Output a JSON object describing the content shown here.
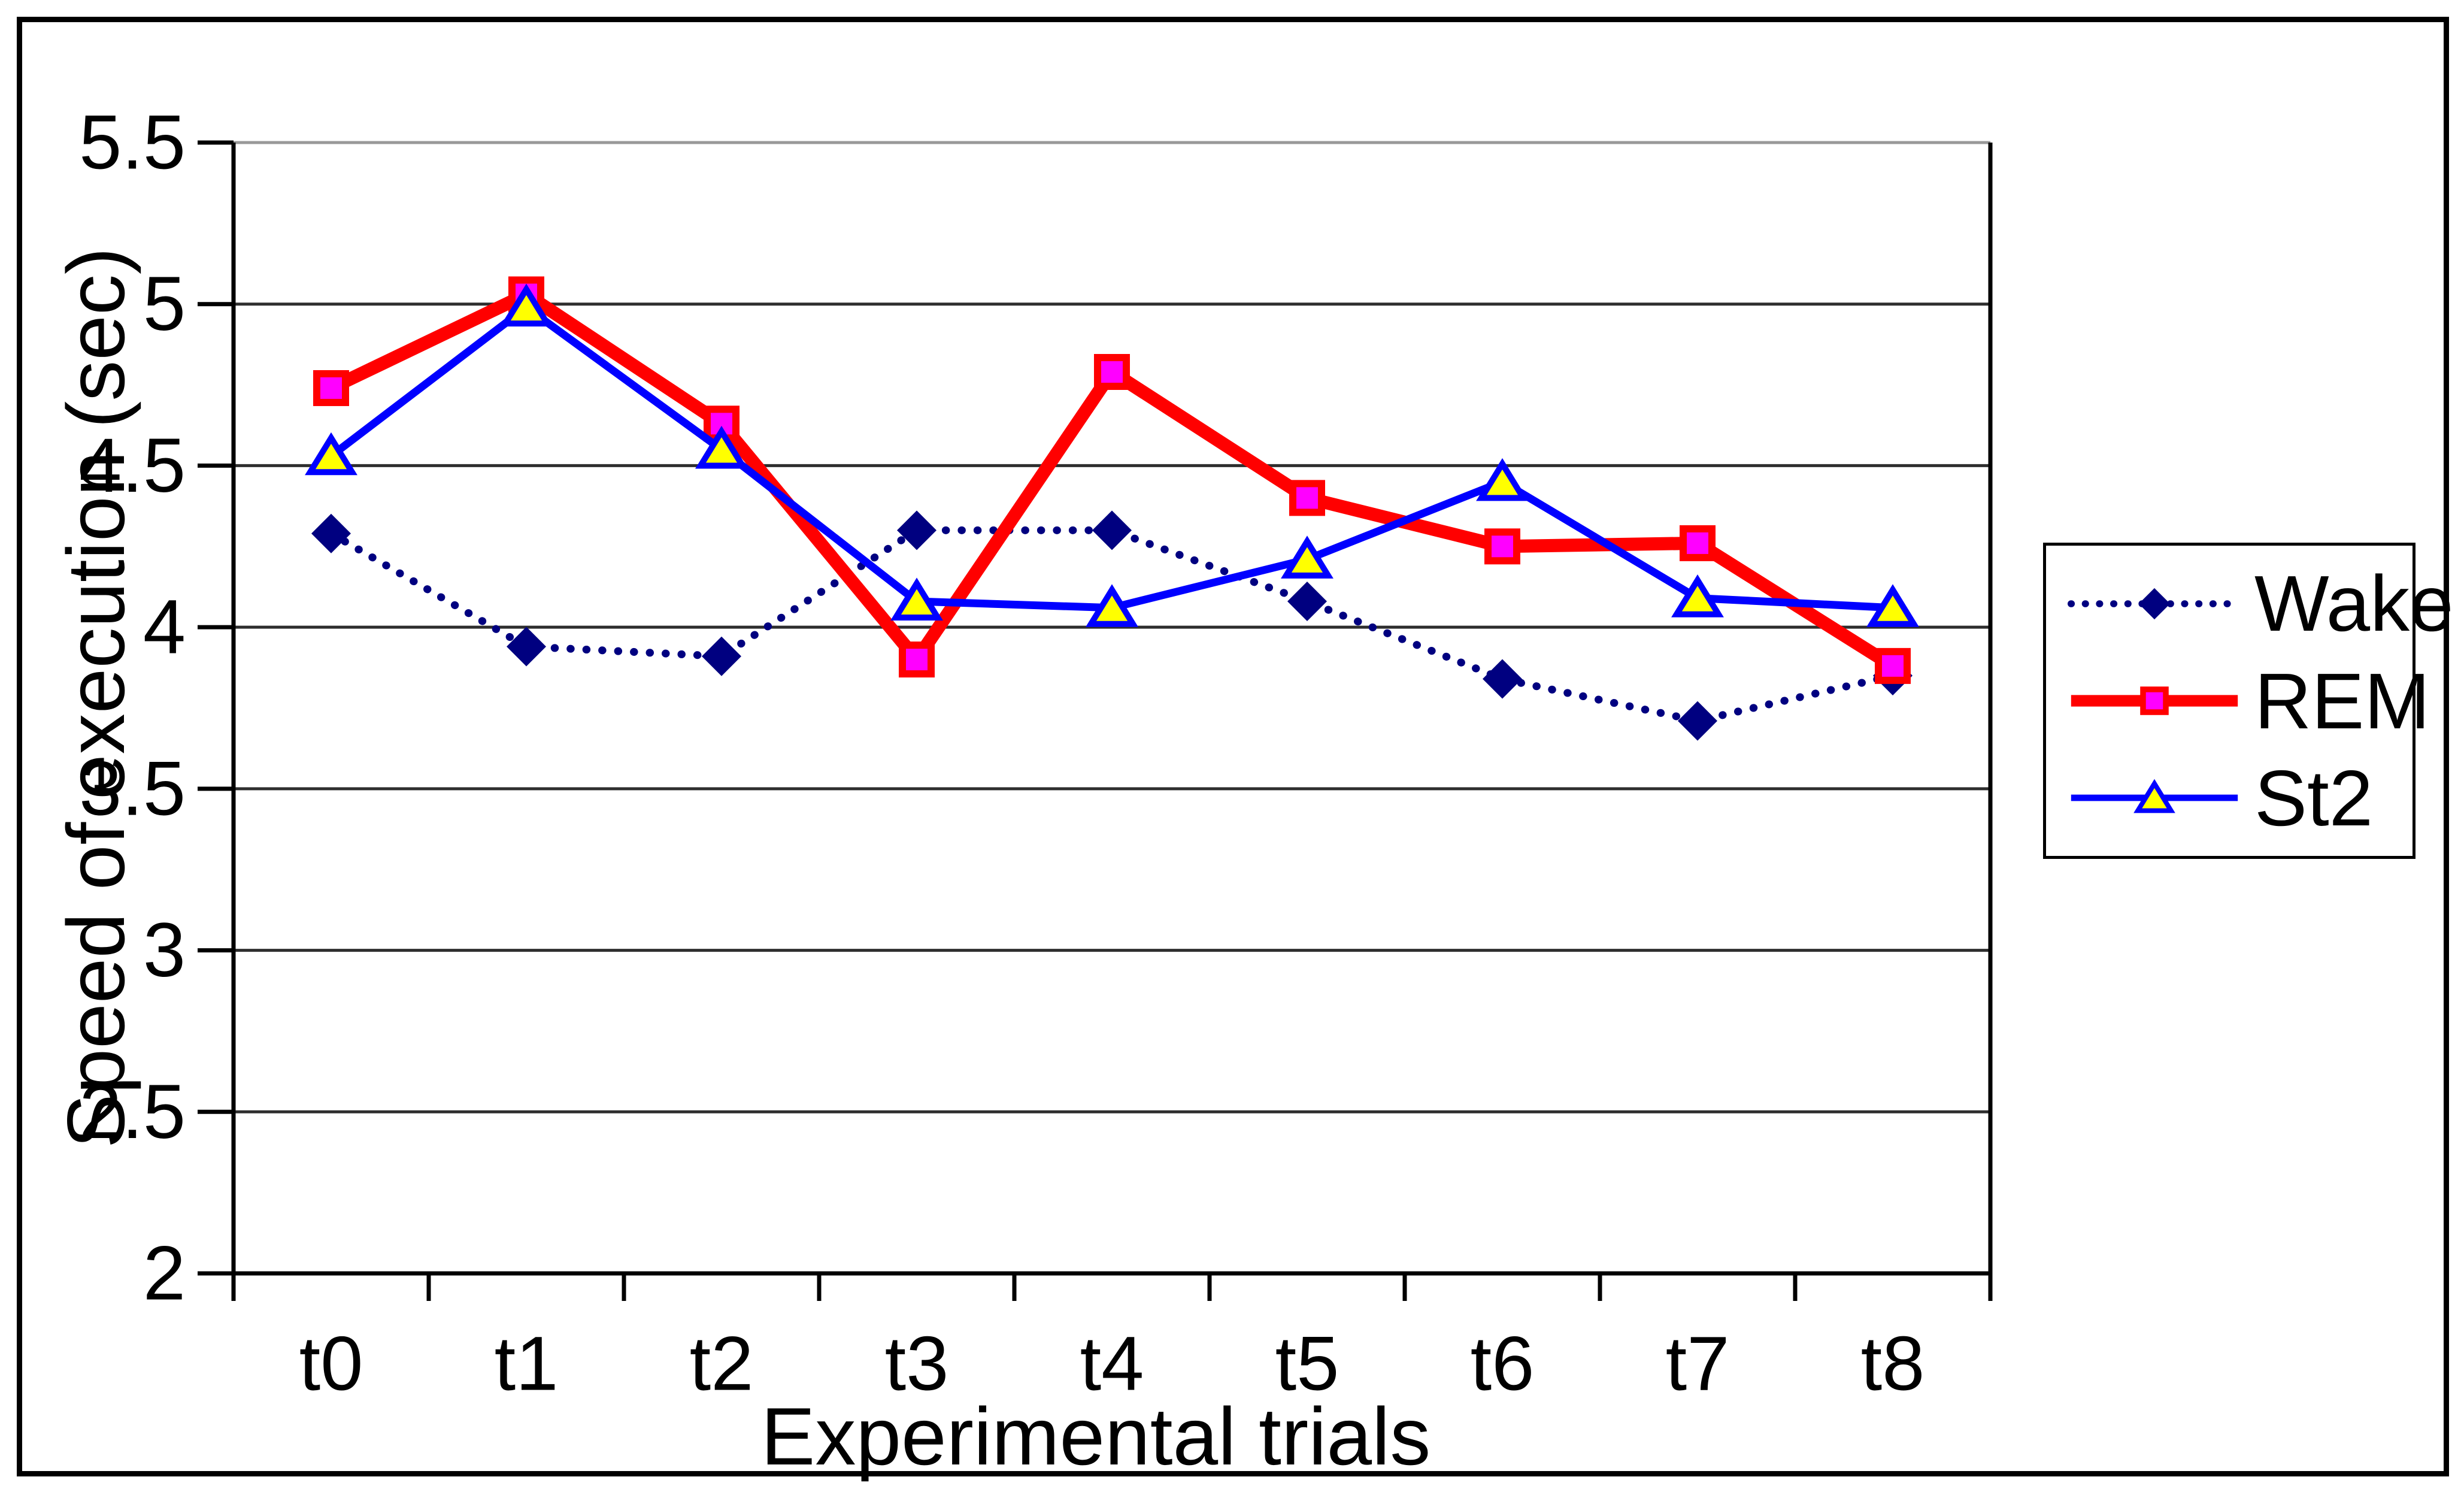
{
  "figure": {
    "background": "#ffffff",
    "border_color": "#000000"
  },
  "chart_data": {
    "type": "line",
    "title": "",
    "xlabel": "Experimental trials",
    "ylabel": "Speed of execution (sec)",
    "categories": [
      "t0",
      "t1",
      "t2",
      "t3",
      "t4",
      "t5",
      "t6",
      "t7",
      "t8"
    ],
    "series": [
      {
        "name": "Wake",
        "values": [
          4.29,
          3.94,
          3.91,
          4.3,
          4.3,
          4.08,
          3.84,
          3.71,
          3.85
        ],
        "color": "#000080",
        "line_style": "dotted",
        "line_width": 13,
        "marker": "diamond",
        "marker_fill": "#000080",
        "marker_stroke": "#000080"
      },
      {
        "name": "REM",
        "values": [
          4.74,
          5.03,
          4.63,
          3.9,
          4.79,
          4.4,
          4.25,
          4.26,
          3.88
        ],
        "color": "#ff0000",
        "line_style": "solid",
        "line_width": 22,
        "marker": "square",
        "marker_fill": "#ff00ff",
        "marker_stroke": "#ff0000"
      },
      {
        "name": "St2",
        "values": [
          4.53,
          4.99,
          4.55,
          4.08,
          4.06,
          4.21,
          4.45,
          4.09,
          4.06
        ],
        "color": "#0000ff",
        "line_style": "solid",
        "line_width": 13,
        "marker": "triangle",
        "marker_fill": "#ffff00",
        "marker_stroke": "#0000ff"
      }
    ],
    "ylim": [
      2,
      5.5
    ],
    "ytick_step": 0.5,
    "ytick_labels": [
      "2",
      "2.5",
      "3",
      "3.5",
      "4",
      "4.5",
      "5",
      "5.5"
    ],
    "grid": "horizontal",
    "gridline_color": "#2e2e2e",
    "plot_top_edge_color": "#999999",
    "axis_color": "#000000",
    "legend_position": "right"
  }
}
